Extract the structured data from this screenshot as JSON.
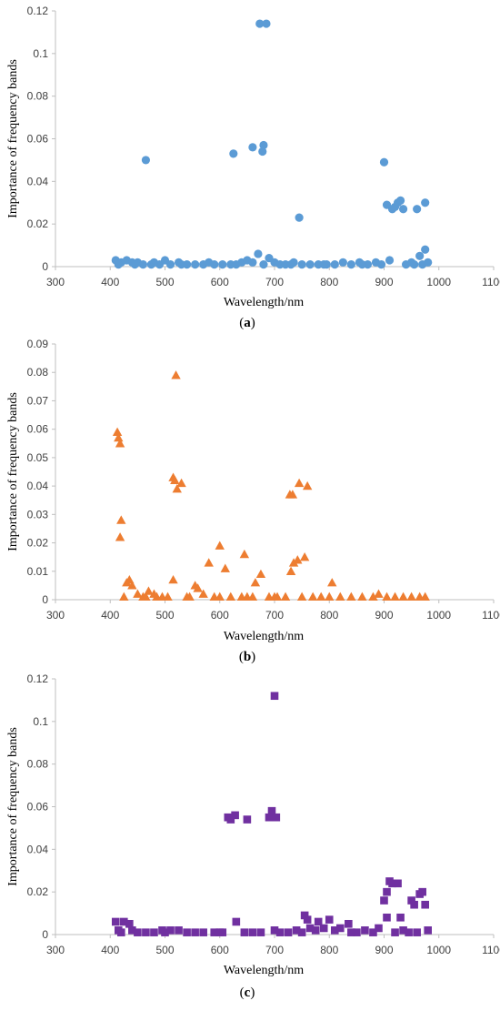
{
  "chart_data": [
    {
      "type": "scatter",
      "caption_open": "(",
      "caption_letter": "a",
      "caption_close": ")",
      "xlabel": "Wavelength/nm",
      "ylabel": "Importance of frequency bands",
      "xlim": [
        300,
        1100
      ],
      "ylim": [
        0,
        0.12
      ],
      "xticks": [
        300,
        400,
        500,
        600,
        700,
        800,
        900,
        1000,
        1100
      ],
      "xtick_labels": [
        "300",
        "400",
        "500",
        "600",
        "700",
        "800",
        "900",
        "1000",
        "1100"
      ],
      "yticks": [
        0,
        0.02,
        0.04,
        0.06,
        0.08,
        0.1,
        0.12
      ],
      "ytick_labels": [
        "0",
        "0.02",
        "0.04",
        "0.06",
        "0.08",
        "0.1",
        "0.12"
      ],
      "marker": "circle",
      "color": "#5B9BD5",
      "points": [
        [
          673,
          0.114
        ],
        [
          685,
          0.114
        ],
        [
          660,
          0.056
        ],
        [
          678,
          0.054
        ],
        [
          680,
          0.057
        ],
        [
          625,
          0.053
        ],
        [
          465,
          0.05
        ],
        [
          900,
          0.049
        ],
        [
          745,
          0.023
        ],
        [
          975,
          0.03
        ],
        [
          905,
          0.029
        ],
        [
          915,
          0.027
        ],
        [
          920,
          0.028
        ],
        [
          925,
          0.03
        ],
        [
          930,
          0.031
        ],
        [
          935,
          0.027
        ],
        [
          960,
          0.027
        ],
        [
          975,
          0.008
        ],
        [
          670,
          0.006
        ],
        [
          690,
          0.004
        ],
        [
          965,
          0.005
        ],
        [
          410,
          0.003
        ],
        [
          420,
          0.002
        ],
        [
          430,
          0.003
        ],
        [
          440,
          0.002
        ],
        [
          450,
          0.002
        ],
        [
          460,
          0.001
        ],
        [
          475,
          0.001
        ],
        [
          490,
          0.001
        ],
        [
          500,
          0.003
        ],
        [
          510,
          0.001
        ],
        [
          525,
          0.002
        ],
        [
          540,
          0.001
        ],
        [
          555,
          0.001
        ],
        [
          570,
          0.001
        ],
        [
          590,
          0.001
        ],
        [
          605,
          0.001
        ],
        [
          620,
          0.001
        ],
        [
          640,
          0.002
        ],
        [
          650,
          0.003
        ],
        [
          660,
          0.002
        ],
        [
          700,
          0.002
        ],
        [
          710,
          0.001
        ],
        [
          720,
          0.001
        ],
        [
          735,
          0.002
        ],
        [
          750,
          0.001
        ],
        [
          765,
          0.001
        ],
        [
          780,
          0.001
        ],
        [
          795,
          0.001
        ],
        [
          810,
          0.001
        ],
        [
          825,
          0.002
        ],
        [
          840,
          0.001
        ],
        [
          855,
          0.002
        ],
        [
          870,
          0.001
        ],
        [
          885,
          0.002
        ],
        [
          895,
          0.001
        ],
        [
          910,
          0.003
        ],
        [
          940,
          0.001
        ],
        [
          950,
          0.002
        ],
        [
          970,
          0.001
        ],
        [
          415,
          0.001
        ],
        [
          445,
          0.001
        ],
        [
          480,
          0.002
        ],
        [
          530,
          0.001
        ],
        [
          580,
          0.002
        ],
        [
          630,
          0.001
        ],
        [
          680,
          0.001
        ],
        [
          730,
          0.001
        ],
        [
          790,
          0.001
        ],
        [
          860,
          0.001
        ],
        [
          955,
          0.001
        ],
        [
          980,
          0.002
        ]
      ]
    },
    {
      "type": "scatter",
      "caption_open": "(",
      "caption_letter": "b",
      "caption_close": ")",
      "xlabel": "Wavelength/nm",
      "ylabel": "Importance of frequency bands",
      "xlim": [
        300,
        1100
      ],
      "ylim": [
        0,
        0.09
      ],
      "xticks": [
        300,
        400,
        500,
        600,
        700,
        800,
        900,
        1000,
        1100
      ],
      "xtick_labels": [
        "300",
        "400",
        "500",
        "600",
        "700",
        "800",
        "900",
        "1000",
        "1100"
      ],
      "yticks": [
        0,
        0.01,
        0.02,
        0.03,
        0.04,
        0.05,
        0.06,
        0.07,
        0.08,
        0.09
      ],
      "ytick_labels": [
        "0",
        "0.01",
        "0.02",
        "0.03",
        "0.04",
        "0.05",
        "0.06",
        "0.07",
        "0.08",
        "0.09"
      ],
      "marker": "triangle",
      "color": "#ED7D31",
      "points": [
        [
          520,
          0.079
        ],
        [
          413,
          0.059
        ],
        [
          415,
          0.057
        ],
        [
          418,
          0.055
        ],
        [
          515,
          0.043
        ],
        [
          518,
          0.042
        ],
        [
          522,
          0.039
        ],
        [
          530,
          0.041
        ],
        [
          745,
          0.041
        ],
        [
          760,
          0.04
        ],
        [
          728,
          0.037
        ],
        [
          733,
          0.037
        ],
        [
          420,
          0.028
        ],
        [
          418,
          0.022
        ],
        [
          600,
          0.019
        ],
        [
          645,
          0.016
        ],
        [
          755,
          0.015
        ],
        [
          742,
          0.014
        ],
        [
          735,
          0.013
        ],
        [
          580,
          0.013
        ],
        [
          610,
          0.011
        ],
        [
          730,
          0.01
        ],
        [
          675,
          0.009
        ],
        [
          665,
          0.006
        ],
        [
          515,
          0.007
        ],
        [
          555,
          0.005
        ],
        [
          560,
          0.004
        ],
        [
          805,
          0.006
        ],
        [
          430,
          0.006
        ],
        [
          435,
          0.007
        ],
        [
          440,
          0.005
        ],
        [
          470,
          0.003
        ],
        [
          450,
          0.002
        ],
        [
          460,
          0.001
        ],
        [
          480,
          0.002
        ],
        [
          495,
          0.001
        ],
        [
          505,
          0.001
        ],
        [
          540,
          0.001
        ],
        [
          570,
          0.002
        ],
        [
          590,
          0.001
        ],
        [
          620,
          0.001
        ],
        [
          640,
          0.001
        ],
        [
          660,
          0.001
        ],
        [
          690,
          0.001
        ],
        [
          705,
          0.001
        ],
        [
          720,
          0.001
        ],
        [
          770,
          0.001
        ],
        [
          785,
          0.001
        ],
        [
          820,
          0.001
        ],
        [
          840,
          0.001
        ],
        [
          860,
          0.001
        ],
        [
          880,
          0.001
        ],
        [
          890,
          0.002
        ],
        [
          905,
          0.001
        ],
        [
          920,
          0.001
        ],
        [
          935,
          0.001
        ],
        [
          950,
          0.001
        ],
        [
          965,
          0.001
        ],
        [
          975,
          0.001
        ],
        [
          425,
          0.001
        ],
        [
          465,
          0.001
        ],
        [
          485,
          0.001
        ],
        [
          545,
          0.001
        ],
        [
          600,
          0.001
        ],
        [
          650,
          0.001
        ],
        [
          700,
          0.001
        ],
        [
          750,
          0.001
        ],
        [
          800,
          0.001
        ]
      ]
    },
    {
      "type": "scatter",
      "caption_open": "(",
      "caption_letter": "c",
      "caption_close": ")",
      "xlabel": "Wavelength/nm",
      "ylabel": "Importance of frequency bands",
      "xlim": [
        300,
        1100
      ],
      "ylim": [
        0,
        0.12
      ],
      "xticks": [
        300,
        400,
        500,
        600,
        700,
        800,
        900,
        1000,
        1100
      ],
      "xtick_labels": [
        "300",
        "400",
        "500",
        "600",
        "700",
        "800",
        "900",
        "1000",
        "1100"
      ],
      "yticks": [
        0,
        0.02,
        0.04,
        0.06,
        0.08,
        0.1,
        0.12
      ],
      "ytick_labels": [
        "0",
        "0.02",
        "0.04",
        "0.06",
        "0.08",
        "0.1",
        "0.12"
      ],
      "marker": "square",
      "color": "#7030A0",
      "points": [
        [
          700,
          0.112
        ],
        [
          615,
          0.055
        ],
        [
          620,
          0.054
        ],
        [
          628,
          0.056
        ],
        [
          650,
          0.054
        ],
        [
          690,
          0.055
        ],
        [
          695,
          0.058
        ],
        [
          703,
          0.055
        ],
        [
          910,
          0.025
        ],
        [
          915,
          0.024
        ],
        [
          925,
          0.024
        ],
        [
          905,
          0.02
        ],
        [
          900,
          0.016
        ],
        [
          965,
          0.019
        ],
        [
          970,
          0.02
        ],
        [
          975,
          0.014
        ],
        [
          950,
          0.016
        ],
        [
          955,
          0.014
        ],
        [
          755,
          0.009
        ],
        [
          760,
          0.007
        ],
        [
          780,
          0.006
        ],
        [
          800,
          0.007
        ],
        [
          835,
          0.005
        ],
        [
          905,
          0.008
        ],
        [
          930,
          0.008
        ],
        [
          410,
          0.006
        ],
        [
          425,
          0.006
        ],
        [
          435,
          0.005
        ],
        [
          630,
          0.006
        ],
        [
          415,
          0.002
        ],
        [
          420,
          0.001
        ],
        [
          440,
          0.002
        ],
        [
          450,
          0.001
        ],
        [
          465,
          0.001
        ],
        [
          480,
          0.001
        ],
        [
          495,
          0.002
        ],
        [
          510,
          0.002
        ],
        [
          525,
          0.002
        ],
        [
          540,
          0.001
        ],
        [
          555,
          0.001
        ],
        [
          570,
          0.001
        ],
        [
          590,
          0.001
        ],
        [
          605,
          0.001
        ],
        [
          645,
          0.001
        ],
        [
          660,
          0.001
        ],
        [
          675,
          0.001
        ],
        [
          710,
          0.001
        ],
        [
          725,
          0.001
        ],
        [
          740,
          0.002
        ],
        [
          765,
          0.003
        ],
        [
          775,
          0.002
        ],
        [
          790,
          0.003
        ],
        [
          810,
          0.002
        ],
        [
          820,
          0.003
        ],
        [
          850,
          0.001
        ],
        [
          865,
          0.002
        ],
        [
          880,
          0.001
        ],
        [
          890,
          0.003
        ],
        [
          920,
          0.001
        ],
        [
          935,
          0.002
        ],
        [
          945,
          0.001
        ],
        [
          960,
          0.001
        ],
        [
          980,
          0.002
        ],
        [
          500,
          0.001
        ],
        [
          600,
          0.001
        ],
        [
          700,
          0.002
        ],
        [
          750,
          0.001
        ],
        [
          840,
          0.001
        ]
      ]
    }
  ]
}
